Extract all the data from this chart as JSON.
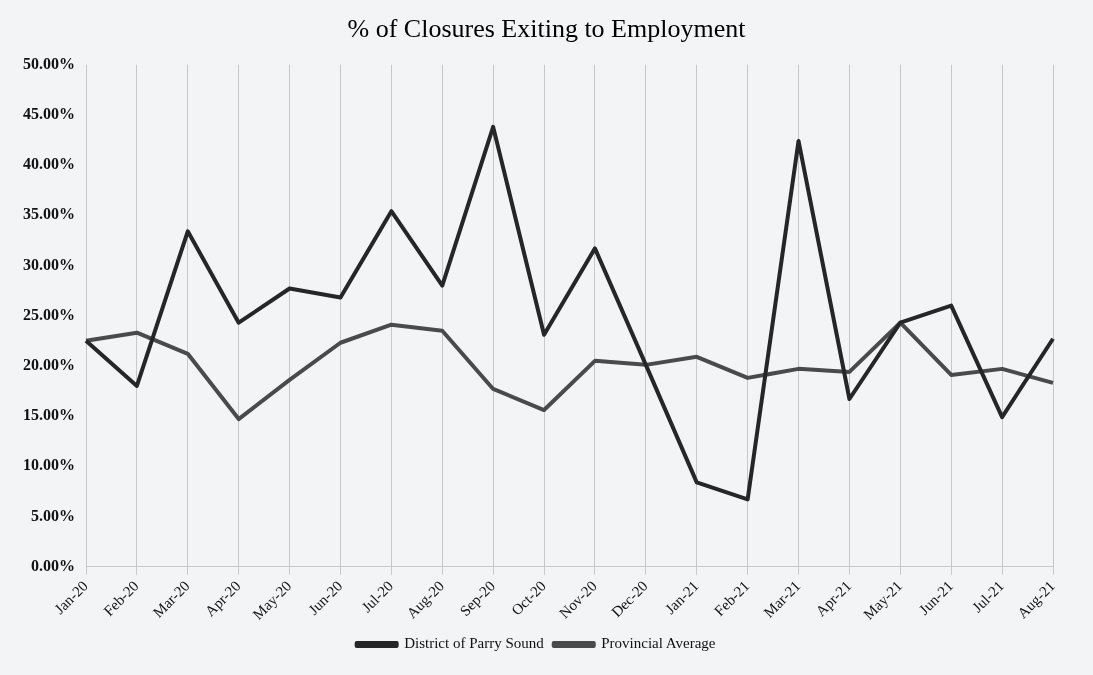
{
  "chart_data": {
    "type": "line",
    "title": "% of Closures Exiting to Employment",
    "categories": [
      "Jan-20",
      "Feb-20",
      "Mar-20",
      "Apr-20",
      "May-20",
      "Jun-20",
      "Jul-20",
      "Aug-20",
      "Sep-20",
      "Oct-20",
      "Nov-20",
      "Dec-20",
      "Jan-21",
      "Feb-21",
      "Mar-21",
      "Apr-21",
      "May-21",
      "Jun-21",
      "Jul-21",
      "Aug-21"
    ],
    "series": [
      {
        "name": "District of Parry Sound",
        "color": "#262626",
        "values": [
          22.5,
          18.0,
          33.4,
          24.3,
          27.7,
          26.8,
          35.4,
          28.0,
          43.8,
          23.1,
          31.7,
          20.1,
          8.4,
          6.7,
          42.4,
          16.7,
          24.3,
          26.0,
          14.9,
          22.7
        ]
      },
      {
        "name": "Provincial Average",
        "color": "#4a4a4a",
        "values": [
          22.5,
          23.3,
          21.2,
          14.7,
          18.6,
          22.3,
          24.1,
          23.5,
          17.7,
          15.6,
          20.5,
          20.1,
          20.9,
          18.8,
          19.7,
          19.4,
          24.3,
          19.1,
          19.7,
          18.3
        ]
      }
    ],
    "ylim": [
      0,
      50
    ],
    "yticks": [
      {
        "value": 0,
        "label": "0.00%"
      },
      {
        "value": 5,
        "label": "5.00%"
      },
      {
        "value": 10,
        "label": "10.00%"
      },
      {
        "value": 15,
        "label": "15.00%"
      },
      {
        "value": 20,
        "label": "20.00%"
      },
      {
        "value": 25,
        "label": "25.00%"
      },
      {
        "value": 30,
        "label": "30.00%"
      },
      {
        "value": 35,
        "label": "35.00%"
      },
      {
        "value": 40,
        "label": "40.00%"
      },
      {
        "value": 45,
        "label": "45.00%"
      },
      {
        "value": 50,
        "label": "50.00%"
      }
    ],
    "grid": "x",
    "legend": "bottom",
    "marker": "none",
    "line_style": "solid"
  }
}
